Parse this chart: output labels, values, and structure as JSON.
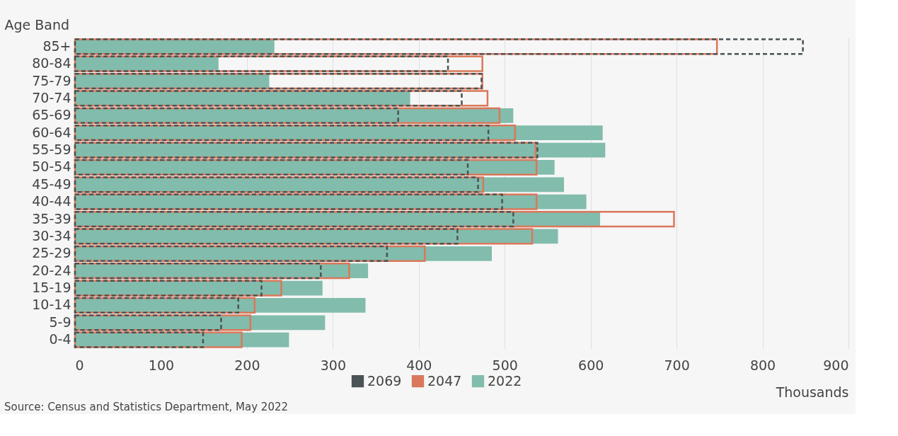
{
  "chart_data": {
    "type": "bar",
    "orientation": "horizontal",
    "ylabel": "Age Band",
    "xlabel": "Thousands",
    "categories": [
      "85+",
      "80-84",
      "75-79",
      "70-74",
      "65-69",
      "60-64",
      "55-59",
      "50-54",
      "45-49",
      "40-44",
      "35-39",
      "30-34",
      "25-29",
      "20-24",
      "15-19",
      "10-14",
      "5-9",
      "0-4"
    ],
    "series": [
      {
        "name": "2069",
        "color": "#4a5355",
        "line_style": "dashed",
        "values": [
          847,
          434,
          473,
          450,
          376,
          481,
          538,
          457,
          469,
          497,
          510,
          445,
          363,
          286,
          217,
          190,
          170,
          149
        ]
      },
      {
        "name": "2047",
        "color": "#d9785a",
        "line_style": "solid",
        "values": [
          747,
          474,
          474,
          480,
          494,
          512,
          536,
          537,
          475,
          537,
          697,
          532,
          407,
          319,
          240,
          209,
          204,
          194
        ]
      },
      {
        "name": "2022",
        "color": "#82bcac",
        "values": [
          232,
          167,
          226,
          390,
          510,
          614,
          617,
          558,
          569,
          595,
          611,
          562,
          485,
          341,
          288,
          338,
          291,
          249
        ]
      }
    ],
    "xlim": [
      0,
      900
    ],
    "xticks": [
      0,
      100,
      200,
      300,
      400,
      500,
      600,
      700,
      800,
      900
    ],
    "grid": "x",
    "legend": "bottom",
    "annotations": [
      "Source: Census and Statistics Department, May 2022"
    ]
  }
}
